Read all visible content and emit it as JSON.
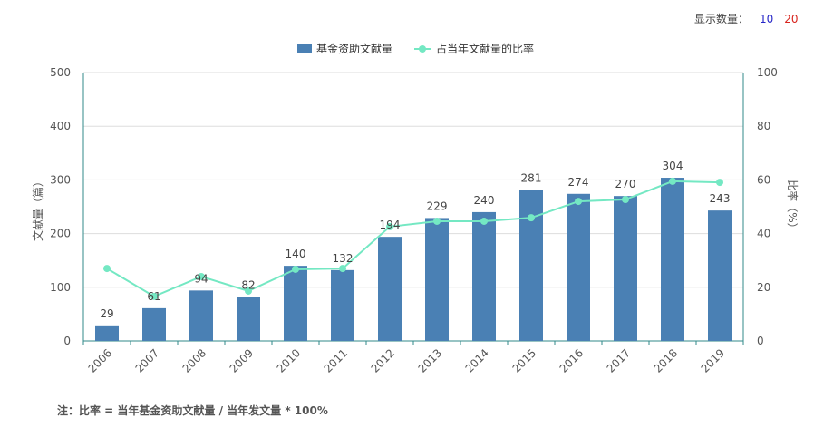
{
  "display_count": {
    "label": "显示数量：",
    "options": [
      "10",
      "20"
    ],
    "option_colors": [
      "#2626c8",
      "#d8241e"
    ]
  },
  "colors": {
    "bar": "#4a80b4",
    "line": "#74e8c3",
    "axis": "#318a8a",
    "grid": "#dddddd",
    "text": "#555555"
  },
  "chart_data": {
    "type": "bar",
    "categories": [
      "2006",
      "2007",
      "2008",
      "2009",
      "2010",
      "2011",
      "2012",
      "2013",
      "2014",
      "2015",
      "2016",
      "2017",
      "2018",
      "2019"
    ],
    "series": [
      {
        "name": "基金资助文献量",
        "type": "bar",
        "axis": "left",
        "values": [
          29,
          61,
          94,
          82,
          140,
          132,
          194,
          229,
          240,
          281,
          274,
          270,
          304,
          243
        ],
        "data_labels": [
          "29",
          "61",
          "94",
          "82",
          "140",
          "132",
          "194",
          "229",
          "240",
          "281",
          "274",
          "270",
          "304",
          "243"
        ]
      },
      {
        "name": "占当年文献量的比率",
        "type": "line",
        "axis": "right",
        "values": [
          27.0,
          16.6,
          24.0,
          18.6,
          26.7,
          27.0,
          42.6,
          44.6,
          44.6,
          45.9,
          52.0,
          52.7,
          59.5,
          59.1
        ]
      }
    ],
    "ylabel": "文献量（篇）",
    "y2label": "比率（%）",
    "ylim": [
      0,
      500
    ],
    "y2lim": [
      0,
      100
    ],
    "yticks": [
      "0",
      "100",
      "200",
      "300",
      "400",
      "500"
    ],
    "y2ticks": [
      "0",
      "20",
      "40",
      "60",
      "80",
      "100"
    ],
    "grid": true,
    "legend": "top-center"
  },
  "footnote": "注：比率 = 当年基金资助文献量 / 当年发文量 * 100%"
}
